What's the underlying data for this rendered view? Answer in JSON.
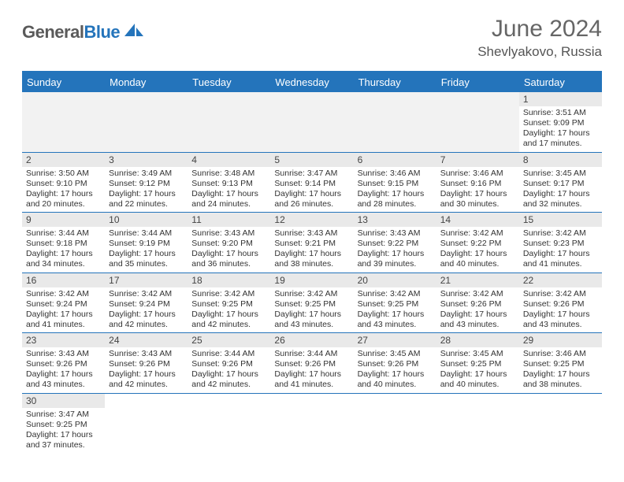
{
  "brand": {
    "part1": "General",
    "part2": "Blue"
  },
  "title": "June 2024",
  "location": "Shevlyakovo, Russia",
  "colors": {
    "accent": "#2474bb",
    "dayHeaderBg": "#e9e9e9",
    "emptyBg": "#f2f2f2",
    "text": "#333333",
    "titleText": "#666666"
  },
  "weekdays": [
    "Sunday",
    "Monday",
    "Tuesday",
    "Wednesday",
    "Thursday",
    "Friday",
    "Saturday"
  ],
  "firstWeekday": 6,
  "days": [
    {
      "n": 1,
      "sunrise": "3:51 AM",
      "sunset": "9:09 PM",
      "dl_h": 17,
      "dl_m": 17
    },
    {
      "n": 2,
      "sunrise": "3:50 AM",
      "sunset": "9:10 PM",
      "dl_h": 17,
      "dl_m": 20
    },
    {
      "n": 3,
      "sunrise": "3:49 AM",
      "sunset": "9:12 PM",
      "dl_h": 17,
      "dl_m": 22
    },
    {
      "n": 4,
      "sunrise": "3:48 AM",
      "sunset": "9:13 PM",
      "dl_h": 17,
      "dl_m": 24
    },
    {
      "n": 5,
      "sunrise": "3:47 AM",
      "sunset": "9:14 PM",
      "dl_h": 17,
      "dl_m": 26
    },
    {
      "n": 6,
      "sunrise": "3:46 AM",
      "sunset": "9:15 PM",
      "dl_h": 17,
      "dl_m": 28
    },
    {
      "n": 7,
      "sunrise": "3:46 AM",
      "sunset": "9:16 PM",
      "dl_h": 17,
      "dl_m": 30
    },
    {
      "n": 8,
      "sunrise": "3:45 AM",
      "sunset": "9:17 PM",
      "dl_h": 17,
      "dl_m": 32
    },
    {
      "n": 9,
      "sunrise": "3:44 AM",
      "sunset": "9:18 PM",
      "dl_h": 17,
      "dl_m": 34
    },
    {
      "n": 10,
      "sunrise": "3:44 AM",
      "sunset": "9:19 PM",
      "dl_h": 17,
      "dl_m": 35
    },
    {
      "n": 11,
      "sunrise": "3:43 AM",
      "sunset": "9:20 PM",
      "dl_h": 17,
      "dl_m": 36
    },
    {
      "n": 12,
      "sunrise": "3:43 AM",
      "sunset": "9:21 PM",
      "dl_h": 17,
      "dl_m": 38
    },
    {
      "n": 13,
      "sunrise": "3:43 AM",
      "sunset": "9:22 PM",
      "dl_h": 17,
      "dl_m": 39
    },
    {
      "n": 14,
      "sunrise": "3:42 AM",
      "sunset": "9:22 PM",
      "dl_h": 17,
      "dl_m": 40
    },
    {
      "n": 15,
      "sunrise": "3:42 AM",
      "sunset": "9:23 PM",
      "dl_h": 17,
      "dl_m": 41
    },
    {
      "n": 16,
      "sunrise": "3:42 AM",
      "sunset": "9:24 PM",
      "dl_h": 17,
      "dl_m": 41
    },
    {
      "n": 17,
      "sunrise": "3:42 AM",
      "sunset": "9:24 PM",
      "dl_h": 17,
      "dl_m": 42
    },
    {
      "n": 18,
      "sunrise": "3:42 AM",
      "sunset": "9:25 PM",
      "dl_h": 17,
      "dl_m": 42
    },
    {
      "n": 19,
      "sunrise": "3:42 AM",
      "sunset": "9:25 PM",
      "dl_h": 17,
      "dl_m": 43
    },
    {
      "n": 20,
      "sunrise": "3:42 AM",
      "sunset": "9:25 PM",
      "dl_h": 17,
      "dl_m": 43
    },
    {
      "n": 21,
      "sunrise": "3:42 AM",
      "sunset": "9:26 PM",
      "dl_h": 17,
      "dl_m": 43
    },
    {
      "n": 22,
      "sunrise": "3:42 AM",
      "sunset": "9:26 PM",
      "dl_h": 17,
      "dl_m": 43
    },
    {
      "n": 23,
      "sunrise": "3:43 AM",
      "sunset": "9:26 PM",
      "dl_h": 17,
      "dl_m": 43
    },
    {
      "n": 24,
      "sunrise": "3:43 AM",
      "sunset": "9:26 PM",
      "dl_h": 17,
      "dl_m": 42
    },
    {
      "n": 25,
      "sunrise": "3:44 AM",
      "sunset": "9:26 PM",
      "dl_h": 17,
      "dl_m": 42
    },
    {
      "n": 26,
      "sunrise": "3:44 AM",
      "sunset": "9:26 PM",
      "dl_h": 17,
      "dl_m": 41
    },
    {
      "n": 27,
      "sunrise": "3:45 AM",
      "sunset": "9:26 PM",
      "dl_h": 17,
      "dl_m": 40
    },
    {
      "n": 28,
      "sunrise": "3:45 AM",
      "sunset": "9:25 PM",
      "dl_h": 17,
      "dl_m": 40
    },
    {
      "n": 29,
      "sunrise": "3:46 AM",
      "sunset": "9:25 PM",
      "dl_h": 17,
      "dl_m": 38
    },
    {
      "n": 30,
      "sunrise": "3:47 AM",
      "sunset": "9:25 PM",
      "dl_h": 17,
      "dl_m": 37
    }
  ],
  "labels": {
    "sunrise": "Sunrise:",
    "sunset": "Sunset:",
    "daylight": "Daylight:",
    "hours": "hours",
    "and": "and",
    "minutes": "minutes."
  }
}
